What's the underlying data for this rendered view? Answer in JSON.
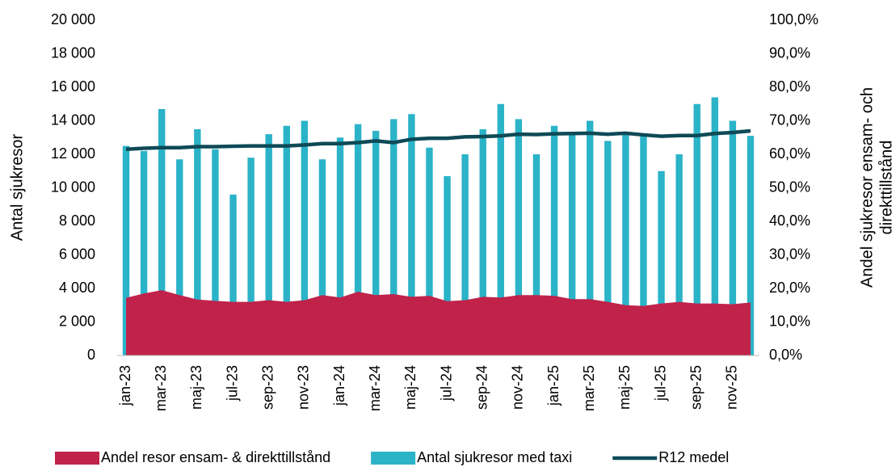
{
  "chart_data": {
    "type": "bar",
    "categories": [
      "jan-23",
      null,
      "mar-23",
      null,
      "maj-23",
      null,
      "jul-23",
      null,
      "sep-23",
      null,
      "nov-23",
      null,
      "jan-24",
      null,
      "mar-24",
      null,
      "maj-24",
      null,
      "jul-24",
      null,
      "sep-24",
      null,
      "nov-24",
      null,
      "jan-25",
      null,
      "mar-25",
      null,
      "maj-25",
      null,
      "jul-25",
      null,
      "sep-25",
      null,
      "nov-25",
      null
    ],
    "ylabel": "Antal sjukresor",
    "y2label": [
      "Andel sjukresor ensam- och",
      "direkttillstånd"
    ],
    "ylim": [
      0,
      20000
    ],
    "yticks": [
      {
        "value": 0,
        "label": "0"
      },
      {
        "value": 2000,
        "label": "2 000"
      },
      {
        "value": 4000,
        "label": "4 000"
      },
      {
        "value": 6000,
        "label": "6 000"
      },
      {
        "value": 8000,
        "label": "8 000"
      },
      {
        "value": 10000,
        "label": "10 000"
      },
      {
        "value": 12000,
        "label": "12 000"
      },
      {
        "value": 14000,
        "label": "14 000"
      },
      {
        "value": 16000,
        "label": "16 000"
      },
      {
        "value": 18000,
        "label": "18 000"
      },
      {
        "value": 20000,
        "label": "20 000"
      }
    ],
    "y2lim": [
      0,
      100
    ],
    "y2ticks": [
      {
        "value": 0,
        "label": "0,0%"
      },
      {
        "value": 10,
        "label": "10,0%"
      },
      {
        "value": 20,
        "label": "20,0%"
      },
      {
        "value": 30,
        "label": "30,0%"
      },
      {
        "value": 40,
        "label": "40,0%"
      },
      {
        "value": 50,
        "label": "50,0%"
      },
      {
        "value": 60,
        "label": "60,0%"
      },
      {
        "value": 70,
        "label": "70,0%"
      },
      {
        "value": 80,
        "label": "80,0%"
      },
      {
        "value": 90,
        "label": "90,0%"
      },
      {
        "value": 100,
        "label": "100,0%"
      }
    ],
    "legend": "bottom",
    "series": [
      {
        "name": "Andel resor ensam- & direkttillstånd",
        "kind": "area",
        "axis": "y2",
        "color": "#c0224a",
        "values": [
          17.2,
          18.5,
          19.5,
          18.0,
          16.7,
          16.3,
          16.0,
          16.0,
          16.5,
          16.0,
          16.5,
          18.0,
          17.3,
          19.0,
          18.0,
          18.3,
          17.5,
          17.8,
          16.2,
          16.5,
          17.5,
          17.3,
          18.0,
          18.0,
          17.8,
          16.8,
          16.8,
          16.0,
          15.0,
          14.8,
          15.5,
          16.0,
          15.5,
          15.5,
          15.3,
          15.8
        ]
      },
      {
        "name": "Antal sjukresor med taxi",
        "kind": "bar",
        "color": "#2bb3c8",
        "values": [
          12500,
          12200,
          14700,
          11700,
          13500,
          12300,
          9600,
          11800,
          13200,
          13700,
          14000,
          11700,
          13000,
          13800,
          13400,
          14100,
          14400,
          12400,
          10700,
          12000,
          13500,
          15000,
          14100,
          12000,
          13700,
          13200,
          14000,
          12800,
          13200,
          13100,
          11000,
          12000,
          15000,
          15400,
          14000,
          13100
        ]
      },
      {
        "name": "R12 medel",
        "kind": "line",
        "axis": "y2",
        "color": "#0e4a56",
        "values": [
          61.5,
          61.8,
          62.0,
          62.0,
          62.3,
          62.3,
          62.4,
          62.5,
          62.5,
          62.5,
          62.8,
          63.2,
          63.2,
          63.5,
          64.0,
          63.5,
          64.5,
          64.8,
          64.8,
          65.2,
          65.3,
          65.5,
          66.0,
          65.9,
          66.1,
          66.2,
          66.3,
          66.0,
          66.3,
          65.8,
          65.4,
          65.6,
          65.6,
          66.2,
          66.5,
          67.0
        ]
      }
    ]
  }
}
